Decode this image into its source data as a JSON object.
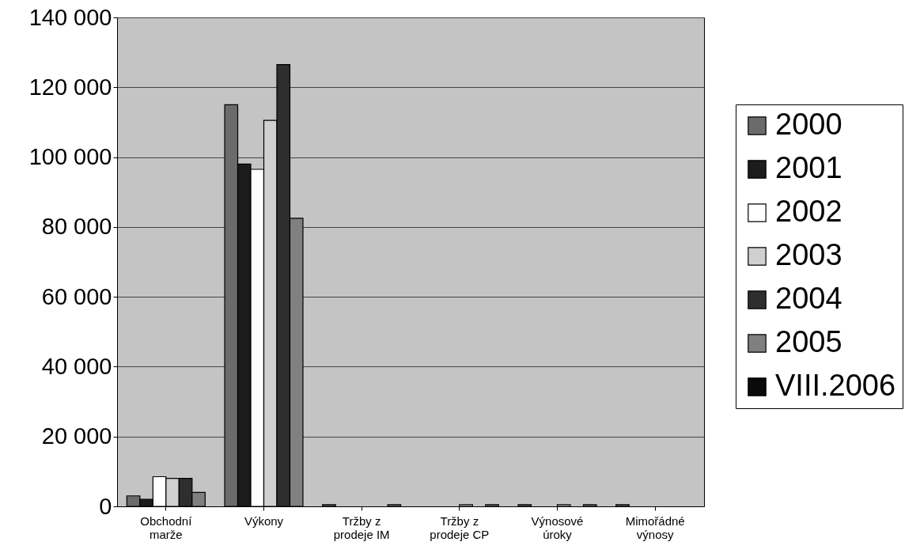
{
  "chart_data": {
    "type": "bar",
    "categories": [
      "Obchodní marže",
      "Výkony",
      "Tržby z prodeje IM",
      "Tržby z prodeje CP",
      "Výnosové úroky",
      "Mimořádné výnosy"
    ],
    "series": [
      {
        "name": "2000",
        "color": "#6b6b6b",
        "values": [
          3000,
          115000,
          500,
          null,
          500,
          500
        ]
      },
      {
        "name": "2001",
        "color": "#1c1c1c",
        "values": [
          2000,
          98000,
          null,
          null,
          null,
          null
        ]
      },
      {
        "name": "2002",
        "color": "#ffffff",
        "values": [
          8500,
          96500,
          null,
          null,
          null,
          null
        ]
      },
      {
        "name": "2003",
        "color": "#d0d0d0",
        "values": [
          8000,
          110500,
          null,
          500,
          500,
          null
        ]
      },
      {
        "name": "2004",
        "color": "#2e2e2e",
        "values": [
          8000,
          126500,
          null,
          null,
          null,
          null
        ]
      },
      {
        "name": "2005",
        "color": "#808080",
        "values": [
          4000,
          82500,
          500,
          500,
          500,
          null
        ]
      },
      {
        "name": "VIII.2006",
        "color": "#0a0a0a",
        "values": [
          null,
          null,
          null,
          null,
          null,
          null
        ]
      }
    ],
    "ylim": [
      0,
      140000
    ],
    "yticks": [
      0,
      {
        "value": 20000,
        "label": "20 000"
      },
      {
        "value": 40000,
        "label": "40 000"
      },
      {
        "value": 60000,
        "label": "60 000"
      },
      {
        "value": 80000,
        "label": "80 000"
      },
      {
        "value": 100000,
        "label": "100 000"
      },
      {
        "value": 120000,
        "label": "120 000"
      },
      {
        "value": 140000,
        "label": "140 000"
      }
    ],
    "grid": "y",
    "legend": "right"
  }
}
